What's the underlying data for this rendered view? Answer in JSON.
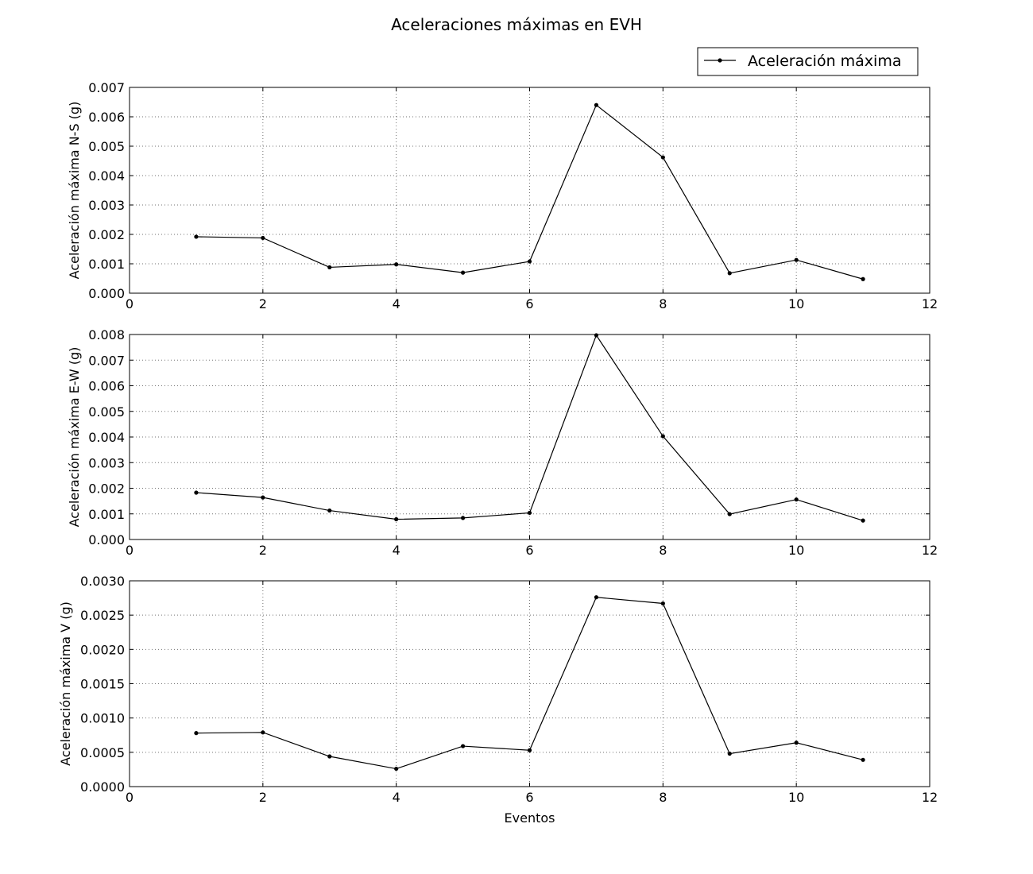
{
  "figure_title": "Aceleraciones máximas en EVH",
  "legend_label": "Aceleración máxima",
  "chart_data": [
    {
      "type": "line",
      "ylabel": "Aceleración máxima N-S (g)",
      "xlabel": "",
      "x": [
        1,
        2,
        3,
        4,
        5,
        6,
        7,
        8,
        9,
        10,
        11
      ],
      "series": [
        {
          "name": "Aceleración máxima",
          "values": [
            0.00192,
            0.00188,
            0.00088,
            0.00098,
            0.0007,
            0.00108,
            0.0064,
            0.00462,
            0.00068,
            0.00113,
            0.00048
          ]
        }
      ],
      "xlim": [
        0,
        12
      ],
      "ylim": [
        0,
        0.007
      ],
      "xticks": [
        "0",
        "2",
        "4",
        "6",
        "8",
        "10",
        "12"
      ],
      "yticks": [
        "0.000",
        "0.001",
        "0.002",
        "0.003",
        "0.004",
        "0.005",
        "0.006",
        "0.007"
      ],
      "grid": true
    },
    {
      "type": "line",
      "ylabel": "Aceleración máxima E-W (g)",
      "xlabel": "",
      "x": [
        1,
        2,
        3,
        4,
        5,
        6,
        7,
        8,
        9,
        10,
        11
      ],
      "series": [
        {
          "name": "Aceleración máxima",
          "values": [
            0.00183,
            0.00164,
            0.00113,
            0.00079,
            0.00084,
            0.00104,
            0.00797,
            0.00403,
            0.00099,
            0.00156,
            0.00074
          ]
        }
      ],
      "xlim": [
        0,
        12
      ],
      "ylim": [
        0,
        0.008
      ],
      "xticks": [
        "0",
        "2",
        "4",
        "6",
        "8",
        "10",
        "12"
      ],
      "yticks": [
        "0.000",
        "0.001",
        "0.002",
        "0.003",
        "0.004",
        "0.005",
        "0.006",
        "0.007",
        "0.008"
      ],
      "grid": true
    },
    {
      "type": "line",
      "ylabel": "Aceleración máxima V (g)",
      "xlabel": "Eventos",
      "x": [
        1,
        2,
        3,
        4,
        5,
        6,
        7,
        8,
        9,
        10,
        11
      ],
      "series": [
        {
          "name": "Aceleración máxima",
          "values": [
            0.00078,
            0.00079,
            0.00044,
            0.00026,
            0.00059,
            0.00053,
            0.00276,
            0.00267,
            0.00048,
            0.00064,
            0.00039
          ]
        }
      ],
      "xlim": [
        0,
        12
      ],
      "ylim": [
        0,
        0.003
      ],
      "xticks": [
        "0",
        "2",
        "4",
        "6",
        "8",
        "10",
        "12"
      ],
      "yticks": [
        "0.0000",
        "0.0005",
        "0.0010",
        "0.0015",
        "0.0020",
        "0.0025",
        "0.0030"
      ],
      "grid": true
    }
  ]
}
